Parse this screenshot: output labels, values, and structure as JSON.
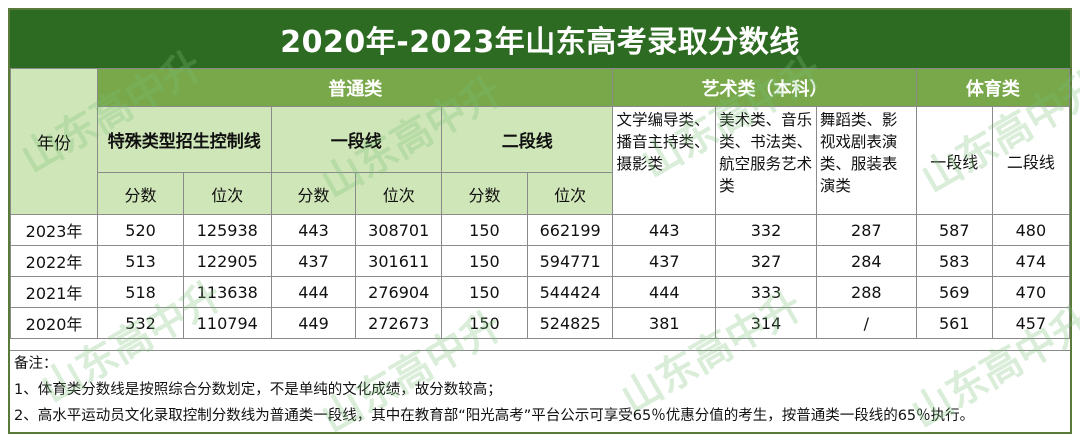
{
  "title": "2020年-2023年山东高考录取分数线",
  "headers": {
    "year": "年份",
    "regular": "普通类",
    "art": "艺术类（本科）",
    "sports": "体育类",
    "special": "特殊类型招生控制线",
    "tier1": "一段线",
    "tier2": "二段线",
    "score": "分数",
    "rank": "位次",
    "art_lit": "文学编导类、播音主持类、摄影类",
    "art_fine": "美术类、音乐类、书法类、航空服务艺术类",
    "art_dance": "舞蹈类、影视戏剧表演类、服装表演类",
    "sport_t1": "一段线",
    "sport_t2": "二段线"
  },
  "rows": [
    {
      "year": "2023年",
      "sp_score": "520",
      "sp_rank": "125938",
      "t1_score": "443",
      "t1_rank": "308701",
      "t2_score": "150",
      "t2_rank": "662199",
      "art_lit": "443",
      "art_fine": "332",
      "art_dance": "287",
      "sport_t1": "587",
      "sport_t2": "480"
    },
    {
      "year": "2022年",
      "sp_score": "513",
      "sp_rank": "122905",
      "t1_score": "437",
      "t1_rank": "301611",
      "t2_score": "150",
      "t2_rank": "594771",
      "art_lit": "437",
      "art_fine": "327",
      "art_dance": "284",
      "sport_t1": "583",
      "sport_t2": "474"
    },
    {
      "year": "2021年",
      "sp_score": "518",
      "sp_rank": "113638",
      "t1_score": "444",
      "t1_rank": "276904",
      "t2_score": "150",
      "t2_rank": "544424",
      "art_lit": "444",
      "art_fine": "333",
      "art_dance": "288",
      "sport_t1": "569",
      "sport_t2": "470"
    },
    {
      "year": "2020年",
      "sp_score": "532",
      "sp_rank": "110794",
      "t1_score": "449",
      "t1_rank": "272673",
      "t2_score": "150",
      "t2_rank": "524825",
      "art_lit": "381",
      "art_fine": "314",
      "art_dance": "/",
      "sport_t1": "561",
      "sport_t2": "457"
    }
  ],
  "notes": {
    "heading": "备注：",
    "line1": "1、体育类分数线是按照综合分数划定，不是单纯的文化成绩，故分数较高；",
    "line2": "2、高水平运动员文化录取控制分数线为普通类一段线，其中在教育部“阳光高考”平台公示可享受65％优惠分值的考生，按普通类一段线的65％执行。"
  },
  "watermark": "山东高中升",
  "colors": {
    "title_bg": "#2e6b22",
    "header_bg": "#79a84a",
    "subheader_bg": "#cfe6b8"
  }
}
